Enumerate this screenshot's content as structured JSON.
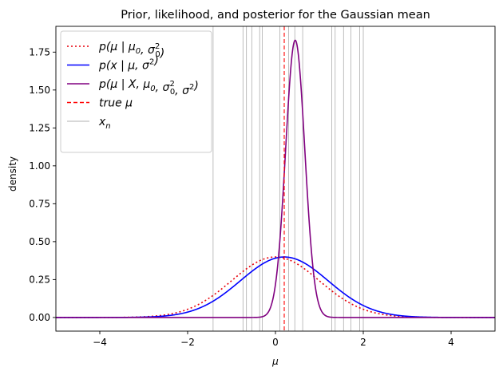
{
  "chart_data": {
    "type": "line",
    "title": "Prior, likelihood, and posterior for the Gaussian mean",
    "xlabel": "μ",
    "ylabel": "density",
    "xlim": [
      -5,
      5
    ],
    "ylim": [
      -0.09,
      1.92
    ],
    "xticks": [
      -4,
      -2,
      0,
      2,
      4
    ],
    "xtick_labels": [
      "−4",
      "−2",
      "0",
      "2",
      "4"
    ],
    "yticks": [
      0.0,
      0.25,
      0.5,
      0.75,
      1.0,
      1.25,
      1.5,
      1.75
    ],
    "ytick_labels": [
      "0.00",
      "0.25",
      "0.50",
      "0.75",
      "1.00",
      "1.25",
      "1.50",
      "1.75"
    ],
    "grid": false,
    "legend_position": "upper-left",
    "true_mu": 0.2,
    "observations": [
      -1.42,
      -0.74,
      -0.66,
      -0.54,
      -0.36,
      -0.3,
      0.1,
      0.3,
      0.44,
      0.62,
      1.28,
      1.36,
      1.55,
      1.72,
      1.92,
      2.0
    ],
    "series": [
      {
        "label_math": [
          {
            "t": "p(μ | μ"
          },
          {
            "t": "0",
            "sub": true
          },
          {
            "t": ", σ"
          },
          {
            "t": "2",
            "sup": true,
            "sub2": "0"
          },
          {
            "t": ")"
          }
        ],
        "style": "dotted",
        "color": "#e8000b",
        "distribution": {
          "mean": 0,
          "sd": 1
        }
      },
      {
        "label_math": [
          {
            "t": "p(x | μ, σ"
          },
          {
            "t": "2",
            "sup": true
          },
          {
            "t": ")"
          }
        ],
        "style": "solid",
        "color": "#0000ff",
        "distribution": {
          "mean": 0.2,
          "sd": 1
        }
      },
      {
        "label_math": [
          {
            "t": "p(μ | X, μ"
          },
          {
            "t": "0",
            "sub": true
          },
          {
            "t": ", σ"
          },
          {
            "t": "2",
            "sup": true,
            "sub2": "0"
          },
          {
            "t": ", σ"
          },
          {
            "t": "2",
            "sup": true
          },
          {
            "t": ")"
          }
        ],
        "style": "solid",
        "color": "#800080",
        "distribution": {
          "mean": 0.45,
          "sd": 0.2182
        }
      },
      {
        "label_math": [
          {
            "t": "true μ"
          }
        ],
        "style": "dashed",
        "color": "#ff0000",
        "kind": "vline"
      },
      {
        "label_math": [
          {
            "t": "x"
          },
          {
            "t": "n",
            "sub": true
          }
        ],
        "style": "solid",
        "color": "#999999",
        "kind": "vlines"
      }
    ]
  }
}
